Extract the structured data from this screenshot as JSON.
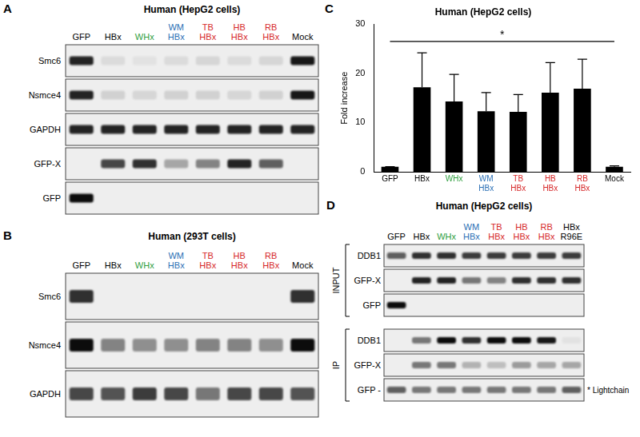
{
  "chart_data": {
    "type": "bar",
    "panel_label": "C",
    "title": "Human (HepG2 cells)",
    "y_label": "Fold increase",
    "categories": [
      "GFP",
      "HBx",
      "WHx",
      "WM HBx",
      "TB HBx",
      "HB HBx",
      "RB HBx",
      "Mock"
    ],
    "values": [
      1.0,
      17.2,
      14.3,
      12.3,
      12.2,
      16.1,
      16.9,
      1.0
    ],
    "errors": [
      0.05,
      7.0,
      5.5,
      3.8,
      3.5,
      6.1,
      6.0,
      0.2
    ],
    "color": "#000000",
    "ylim": [
      0,
      30
    ],
    "yticks": [
      0,
      10,
      20,
      30
    ],
    "grid": false,
    "annotations": [
      {
        "text": "*",
        "from": "GFP",
        "to": "Mock",
        "y": 26.5
      }
    ]
  },
  "blots": [
    {
      "panel_label": "A",
      "title": "Human (HepG2 cells)",
      "lanes": [
        "GFP",
        "HBx",
        "WHx",
        "WM HBx",
        "TB HBx",
        "HB HBx",
        "RB HBx",
        "Mock"
      ],
      "groups": [
        {
          "name": null,
          "rows": [
            {
              "name": "Smc6",
              "bands": [
                0.85,
                0.08,
                0.05,
                0.08,
                0.1,
                0.08,
                0.1,
                0.9
              ]
            },
            {
              "name": "Nsmce4",
              "bands": [
                0.85,
                0.12,
                0.1,
                0.12,
                0.12,
                0.1,
                0.12,
                0.9
              ]
            },
            {
              "name": "GAPDH",
              "bands": [
                0.85,
                0.85,
                0.85,
                0.85,
                0.85,
                0.85,
                0.85,
                0.85
              ]
            },
            {
              "name": "GFP-X",
              "bands": [
                0,
                0.7,
                0.8,
                0.3,
                0.45,
                0.85,
                0.6,
                0
              ]
            },
            {
              "name": "GFP",
              "bands": [
                0.95,
                0,
                0,
                0,
                0,
                0,
                0,
                0
              ]
            }
          ]
        }
      ]
    },
    {
      "panel_label": "B",
      "title": "Human (293T cells)",
      "lanes": [
        "GFP",
        "HBx",
        "WHx",
        "WM HBx",
        "TB HBx",
        "HB HBx",
        "RB HBx",
        "Mock"
      ],
      "groups": [
        {
          "name": null,
          "rows": [
            {
              "name": "Smc6",
              "bands": [
                0.8,
                0,
                0,
                0,
                0,
                0,
                0,
                0.8
              ]
            },
            {
              "name": "Nsmce4",
              "bands": [
                0.95,
                0.45,
                0.4,
                0.4,
                0.45,
                0.45,
                0.4,
                0.95
              ]
            },
            {
              "name": "GAPDH",
              "bands": [
                0.7,
                0.65,
                0.75,
                0.7,
                0.5,
                0.7,
                0.7,
                0.65
              ]
            }
          ]
        }
      ]
    },
    {
      "panel_label": "D",
      "title": "Human (HepG2 cells)",
      "lanes": [
        "GFP",
        "HBx",
        "WHx",
        "WM HBx",
        "TB HBx",
        "HB HBx",
        "RB HBx",
        "HBx R96E"
      ],
      "groups": [
        {
          "name": "INPUT",
          "rows": [
            {
              "name": "DDB1",
              "bands": [
                0.6,
                0.8,
                0.8,
                0.75,
                0.75,
                0.75,
                0.75,
                0.75
              ]
            },
            {
              "name": "GFP-X",
              "bands": [
                0,
                0.85,
                0.85,
                0.5,
                0.45,
                0.8,
                0.8,
                0.8
              ]
            },
            {
              "name": "GFP",
              "bands": [
                0.95,
                0,
                0,
                0,
                0,
                0,
                0,
                0
              ]
            }
          ]
        },
        {
          "name": "IP",
          "rows": [
            {
              "name": "DDB1",
              "bands": [
                0,
                0.5,
                0.95,
                0.8,
                0.95,
                0.95,
                0.9,
                0.05
              ]
            },
            {
              "name": "GFP-X",
              "bands": [
                0,
                0.5,
                0.5,
                0.25,
                0.2,
                0.35,
                0.3,
                0.3
              ]
            },
            {
              "name": "GFP -",
              "bands": [
                0.6,
                0.5,
                0.5,
                0.5,
                0.5,
                0.5,
                0.5,
                0.6
              ],
              "annotation": "* Lightchain"
            }
          ]
        }
      ]
    }
  ]
}
